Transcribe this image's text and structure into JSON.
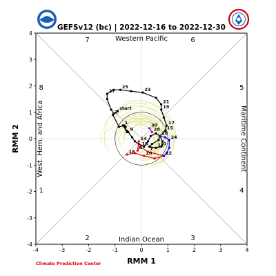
{
  "chart_data": {
    "type": "line",
    "title": "GEFSv12 (bc) | 2022-12-16 to 2022-12-30",
    "xlabel": "RMM 1",
    "ylabel": "RMM 2",
    "xlim": [
      -4,
      4
    ],
    "ylim": [
      -4,
      4
    ],
    "xticks": [
      "-4",
      "-3",
      "-2",
      "-1",
      "0",
      "1",
      "2",
      "3",
      "4"
    ],
    "yticks": [
      "-4",
      "-3",
      "-2",
      "-1",
      "0",
      "1",
      "2",
      "3",
      "4"
    ],
    "phase_labels": [
      {
        "text": "1",
        "x": -3.8,
        "y": -1.95
      },
      {
        "text": "2",
        "x": -2.05,
        "y": -3.75
      },
      {
        "text": "3",
        "x": 1.95,
        "y": -3.75
      },
      {
        "text": "4",
        "x": 3.8,
        "y": -1.95
      },
      {
        "text": "5",
        "x": 3.8,
        "y": 1.95
      },
      {
        "text": "6",
        "x": 1.95,
        "y": 3.75
      },
      {
        "text": "7",
        "x": -2.05,
        "y": 3.75
      },
      {
        "text": "8",
        "x": -3.8,
        "y": 1.95
      }
    ],
    "regions": {
      "top": "Western Pacific",
      "bottom": "Indian Ocean",
      "left": "West. Hem. and Africa",
      "right": "Maritime Continent"
    },
    "amplitude_circle_radius": 1,
    "series": [
      {
        "color": "#000000",
        "points": [
          {
            "x": -0.9,
            "y": 1.05,
            "label": "start"
          },
          {
            "x": -1.05,
            "y": 0.95,
            "label": ""
          },
          {
            "x": -1.08,
            "y": 0.9,
            "label": "2"
          },
          {
            "x": -0.85,
            "y": 0.45,
            "label": ""
          },
          {
            "x": -0.65,
            "y": 0.5,
            "label": ""
          },
          {
            "x": -0.6,
            "y": 0.45,
            "label": ""
          },
          {
            "x": -0.7,
            "y": 0.5,
            "label": ""
          },
          {
            "x": -0.55,
            "y": 0.3,
            "label": ""
          },
          {
            "x": -0.7,
            "y": 0.5,
            "label": "1"
          },
          {
            "x": -0.55,
            "y": 0.25,
            "label": ""
          },
          {
            "x": -0.5,
            "y": 0.25,
            "label": "9"
          },
          {
            "x": -0.35,
            "y": 0.05,
            "label": ""
          },
          {
            "x": -0.25,
            "y": -0.1,
            "label": ""
          },
          {
            "x": -0.1,
            "y": -0.2,
            "label": ""
          },
          {
            "x": 0.1,
            "y": -0.3,
            "label": ""
          },
          {
            "x": 0.25,
            "y": -0.1,
            "label": ""
          },
          {
            "x": 0.35,
            "y": 0.1,
            "label": ""
          },
          {
            "x": 0.55,
            "y": 0.2,
            "label": ""
          },
          {
            "x": 0.7,
            "y": 0.1,
            "label": ""
          },
          {
            "x": 0.65,
            "y": -0.05,
            "label": ""
          },
          {
            "x": 0.4,
            "y": -0.2,
            "label": ""
          },
          {
            "x": 0.3,
            "y": -0.3,
            "label": ""
          },
          {
            "x": 0.55,
            "y": -0.35,
            "label": "11"
          },
          {
            "x": 0.75,
            "y": -0.3,
            "label": "0"
          },
          {
            "x": 0.8,
            "y": -0.1,
            "label": ""
          },
          {
            "x": 0.7,
            "y": 0.1,
            "label": "18"
          },
          {
            "x": 0.9,
            "y": 0.3,
            "label": "15"
          },
          {
            "x": 0.95,
            "y": 0.5,
            "label": "17"
          },
          {
            "x": 0.85,
            "y": 0.8,
            "label": ""
          },
          {
            "x": 0.75,
            "y": 1.1,
            "label": "19"
          },
          {
            "x": 0.75,
            "y": 1.3,
            "label": "21"
          },
          {
            "x": 0.55,
            "y": 1.55,
            "label": ""
          },
          {
            "x": 0.05,
            "y": 1.75,
            "label": "23"
          },
          {
            "x": -0.4,
            "y": 1.8,
            "label": ""
          },
          {
            "x": -0.8,
            "y": 1.85,
            "label": "25"
          },
          {
            "x": -1.05,
            "y": 1.85,
            "label": ""
          },
          {
            "x": -1.3,
            "y": 1.7,
            "label": "27"
          },
          {
            "x": -1.3,
            "y": 1.5,
            "label": ""
          },
          {
            "x": -1.15,
            "y": 1.1,
            "label": ""
          },
          {
            "x": -1.05,
            "y": 0.95,
            "label": ""
          }
        ]
      },
      {
        "color": "#e60000",
        "points": [
          {
            "x": -0.55,
            "y": -0.6,
            "label": "18"
          },
          {
            "x": -0.25,
            "y": -0.55,
            "label": ""
          },
          {
            "x": 0.1,
            "y": -0.65,
            "label": "20"
          },
          {
            "x": 0.5,
            "y": -0.75,
            "label": ""
          },
          {
            "x": 0.85,
            "y": -0.65,
            "label": "22"
          },
          {
            "x": 0.25,
            "y": -0.5,
            "label": "7"
          },
          {
            "x": -0.05,
            "y": -0.3,
            "label": "16"
          },
          {
            "x": -0.15,
            "y": -0.45,
            "label": "5"
          },
          {
            "x": -0.1,
            "y": -0.1,
            "label": "14"
          }
        ]
      },
      {
        "color": "#0000ff",
        "points": [
          {
            "x": 0.7,
            "y": 0.1,
            "label": ""
          },
          {
            "x": 0.9,
            "y": 0.05,
            "label": ""
          },
          {
            "x": 1.05,
            "y": -0.05,
            "label": "24"
          },
          {
            "x": 1.05,
            "y": -0.35,
            "label": ""
          },
          {
            "x": 0.95,
            "y": -0.55,
            "label": ""
          },
          {
            "x": 0.85,
            "y": -0.65,
            "label": ""
          }
        ]
      },
      {
        "color": "#9900cc",
        "points": [
          {
            "x": 0.3,
            "y": 0.4,
            "label": "30"
          },
          {
            "x": 0.4,
            "y": 0.25,
            "label": "28"
          }
        ]
      }
    ]
  },
  "footer": {
    "credit": "Climate Prediction Center"
  },
  "logos": {
    "left": "NOAA",
    "right": "NATIONAL WEATHER SERVICE"
  }
}
